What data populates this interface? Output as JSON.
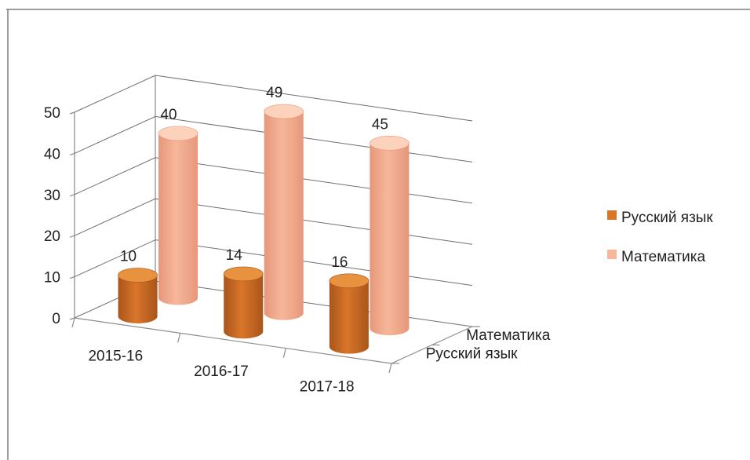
{
  "colors": {
    "frame": "#7f7f7f",
    "russian_body": "#d9762a",
    "russian_dark": "#a9551b",
    "russian_top": "#e8913f",
    "math_body": "#f7b79a",
    "math_dark": "#e6977a",
    "math_top": "#fcd2bd"
  },
  "chart_data": {
    "type": "bar",
    "subtype": "3d-cylinder",
    "categories": [
      "2015-16",
      "2016-17",
      "2017-18"
    ],
    "series": [
      {
        "name": "Русский язык",
        "values": [
          10,
          14,
          16
        ],
        "color": "#d9762a"
      },
      {
        "name": "Математика",
        "values": [
          40,
          49,
          45
        ],
        "color": "#f7b79a"
      }
    ],
    "y_ticks": [
      "0",
      "10",
      "20",
      "30",
      "40",
      "50"
    ],
    "ylim": [
      0,
      50
    ],
    "depth_labels": [
      "Математика",
      "Русский язык"
    ],
    "legend": [
      "Русский язык",
      "Математика"
    ],
    "legend_position": "right",
    "grid": true
  }
}
